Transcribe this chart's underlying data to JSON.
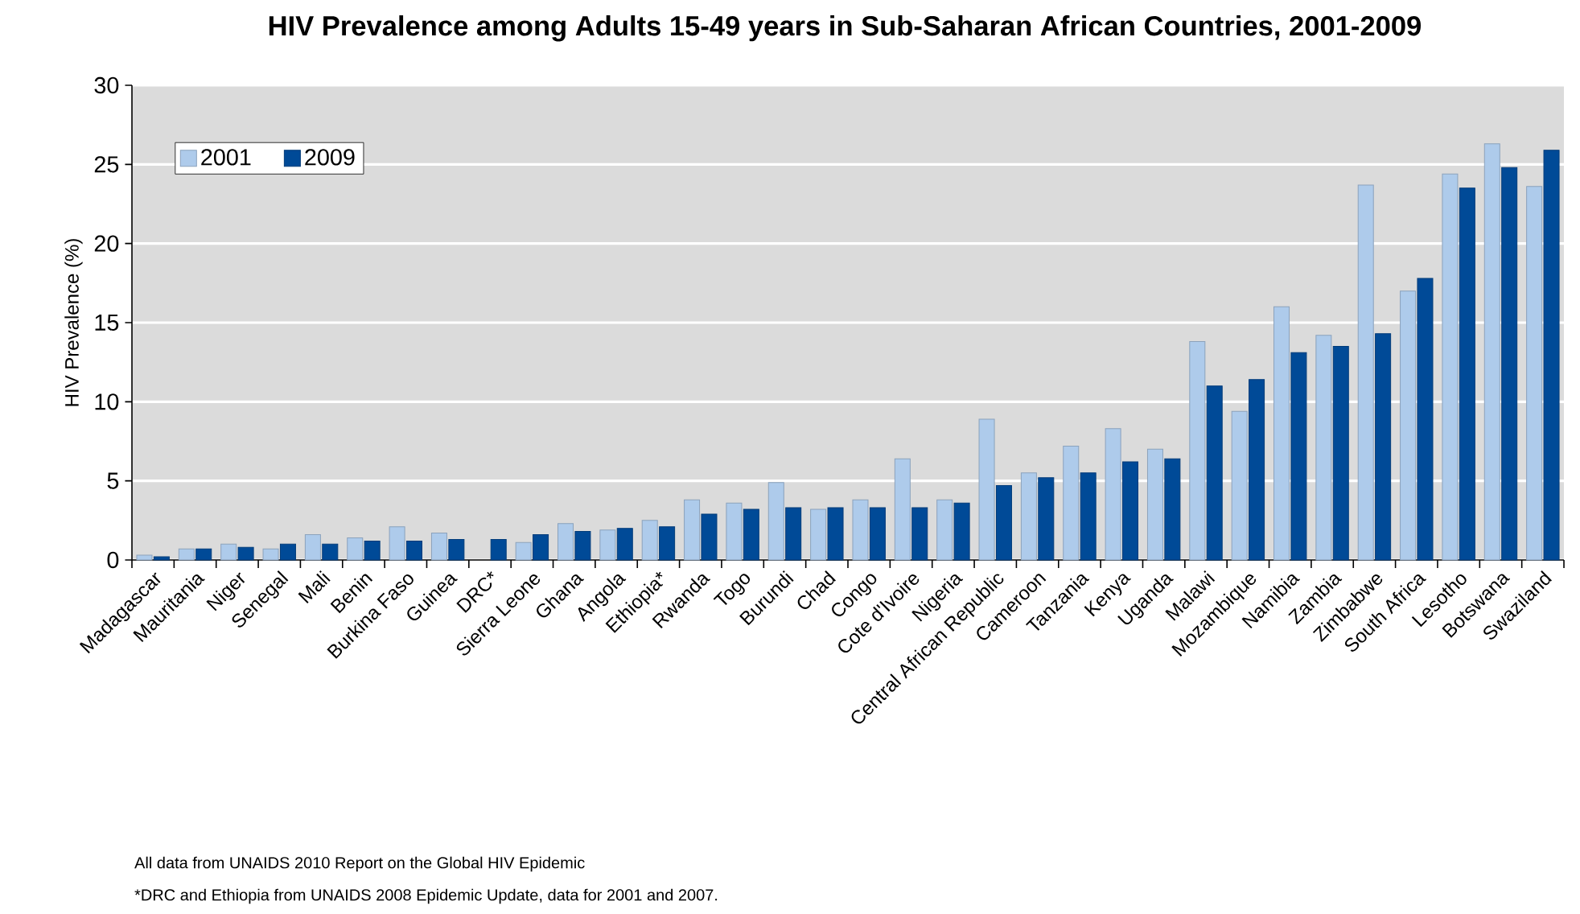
{
  "chart_data": {
    "type": "bar",
    "title": "HIV Prevalence among Adults 15-49 years in Sub-Saharan African Countries, 2001-2009",
    "ylabel": "HIV Prevalence (%)",
    "categories": [
      "Madagascar",
      "Mauritania",
      "Niger",
      "Senegal",
      "Mali",
      "Benin",
      "Burkina Faso",
      "Guinea",
      "DRC*",
      "Sierra Leone",
      "Ghana",
      "Angola",
      "Ethiopia*",
      "Rwanda",
      "Togo",
      "Burundi",
      "Chad",
      "Congo",
      "Cote d'Ivoire",
      "Nigeria",
      "Central African Republic",
      "Cameroon",
      "Tanzania",
      "Kenya",
      "Uganda",
      "Malawi",
      "Mozambique",
      "Namibia",
      "Zambia",
      "Zimbabwe",
      "South Africa",
      "Lesotho",
      "Botswana",
      "Swaziland"
    ],
    "series": [
      {
        "name": "2001",
        "color": "#aecbeb",
        "values": [
          0.3,
          0.7,
          1.0,
          0.7,
          1.6,
          1.4,
          2.1,
          1.7,
          null,
          1.1,
          2.3,
          1.9,
          2.5,
          3.8,
          3.6,
          4.9,
          3.2,
          3.8,
          6.4,
          3.8,
          8.9,
          5.5,
          7.2,
          8.3,
          7.0,
          13.8,
          9.4,
          16.0,
          14.2,
          23.7,
          17.0,
          24.4,
          26.3,
          23.6
        ]
      },
      {
        "name": "2009",
        "color": "#004a97",
        "values": [
          0.2,
          0.7,
          0.8,
          1.0,
          1.0,
          1.2,
          1.2,
          1.3,
          1.3,
          1.6,
          1.8,
          2.0,
          2.1,
          2.9,
          3.2,
          3.3,
          3.3,
          3.3,
          3.3,
          3.6,
          4.7,
          5.2,
          5.5,
          6.2,
          6.4,
          11.0,
          11.4,
          13.1,
          13.5,
          14.3,
          17.8,
          23.5,
          24.8,
          25.9
        ]
      }
    ],
    "ylim": [
      0,
      30
    ],
    "yticks": [
      0,
      5,
      10,
      15,
      20,
      25,
      30
    ],
    "grid": "y",
    "legend": "top left",
    "annotations": [
      "All data  from UNAIDS 2010 Report on the Global HIV Epidemic",
      "*DRC and Ethiopia from UNAIDS 2008 Epidemic Update, data for 2001 and 2007."
    ]
  }
}
